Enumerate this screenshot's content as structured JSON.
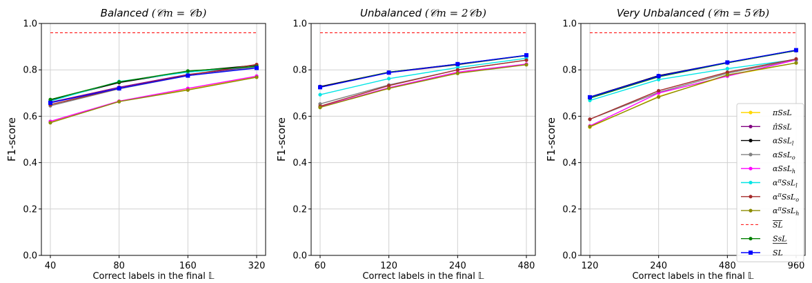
{
  "chart_data": [
    {
      "type": "line",
      "title": "Balanced  (c_m = c_b)",
      "title_parts": {
        "name": "Balanced",
        "formula": "(𝒞m = 𝒞b)"
      },
      "xlabel": "Correct labels in the final 𝕃",
      "ylabel": "F1-score",
      "x": [
        "40",
        "80",
        "160",
        "320"
      ],
      "ylim": [
        0.0,
        1.0
      ],
      "yticks": [
        "0.0",
        "0.2",
        "0.4",
        "0.6",
        "0.8",
        "1.0"
      ],
      "grid": true,
      "series": [
        {
          "name": "πSsL",
          "color": "#ffd700",
          "marker": "circle",
          "values": [
            0.575,
            0.665,
            0.715,
            0.77
          ]
        },
        {
          "name": "π̂SsL",
          "color": "#800080",
          "marker": "circle",
          "values": [
            0.66,
            0.725,
            0.78,
            0.815
          ]
        },
        {
          "name": "αSsL_l",
          "color": "#000000",
          "marker": "circle",
          "values": [
            0.67,
            0.745,
            0.793,
            0.82
          ]
        },
        {
          "name": "αSsL_o",
          "color": "#808080",
          "marker": "circle",
          "values": [
            0.645,
            0.718,
            0.775,
            0.812
          ]
        },
        {
          "name": "αSsL_h",
          "color": "#ff00ff",
          "marker": "circle",
          "values": [
            0.578,
            0.665,
            0.72,
            0.773
          ]
        },
        {
          "name": "α^πSsL_l",
          "color": "#00e5e5",
          "marker": "circle",
          "values": [
            0.665,
            0.75,
            0.79,
            0.815
          ]
        },
        {
          "name": "α^πSsL_o",
          "color": "#a52a2a",
          "marker": "circle",
          "values": [
            0.65,
            0.72,
            0.778,
            0.823
          ]
        },
        {
          "name": "α^πSsL_h",
          "color": "#8b8b00",
          "marker": "circle",
          "values": [
            0.572,
            0.663,
            0.713,
            0.768
          ]
        },
        {
          "name": "SL (upper)",
          "color": "#ff0000",
          "style": "dashed",
          "values": [
            0.96,
            0.96,
            0.96,
            0.96
          ]
        },
        {
          "name": "SsL (lower)",
          "color": "#008000",
          "marker": "circle",
          "values": [
            0.672,
            0.748,
            0.795,
            0.815
          ]
        },
        {
          "name": "SL",
          "color": "#0000ff",
          "marker": "square",
          "values": [
            0.658,
            0.72,
            0.775,
            0.808
          ]
        }
      ]
    },
    {
      "type": "line",
      "title": "Unbalanced  (c_m = 2c_b)",
      "title_parts": {
        "name": "Unbalanced",
        "formula": "(𝒞m = 2𝒞b)"
      },
      "xlabel": "Correct labels in the final 𝕃",
      "ylabel": "F1-score",
      "x": [
        "60",
        "120",
        "240",
        "480"
      ],
      "ylim": [
        0.0,
        1.0
      ],
      "yticks": [
        "0.0",
        "0.2",
        "0.4",
        "0.6",
        "0.8",
        "1.0"
      ],
      "grid": true,
      "series": [
        {
          "name": "πSsL",
          "color": "#ffd700",
          "marker": "circle",
          "values": [
            0.638,
            0.72,
            0.787,
            0.823
          ]
        },
        {
          "name": "π̂SsL",
          "color": "#800080",
          "marker": "circle",
          "values": [
            0.725,
            0.788,
            0.822,
            0.862
          ]
        },
        {
          "name": "αSsL_l",
          "color": "#000000",
          "marker": "circle",
          "values": [
            0.728,
            0.79,
            0.825,
            0.862
          ]
        },
        {
          "name": "αSsL_o",
          "color": "#808080",
          "marker": "circle",
          "values": [
            0.653,
            0.735,
            0.8,
            0.842
          ]
        },
        {
          "name": "αSsL_h",
          "color": "#ff00ff",
          "marker": "circle",
          "values": [
            0.64,
            0.723,
            0.79,
            0.825
          ]
        },
        {
          "name": "α^πSsL_l",
          "color": "#00e5e5",
          "marker": "circle",
          "values": [
            0.693,
            0.762,
            0.81,
            0.85
          ]
        },
        {
          "name": "α^πSsL_o",
          "color": "#a52a2a",
          "marker": "circle",
          "values": [
            0.643,
            0.732,
            0.8,
            0.842
          ]
        },
        {
          "name": "α^πSsL_h",
          "color": "#8b8b00",
          "marker": "circle",
          "values": [
            0.638,
            0.72,
            0.785,
            0.822
          ]
        },
        {
          "name": "SL (upper)",
          "color": "#ff0000",
          "style": "dashed",
          "values": [
            0.96,
            0.96,
            0.96,
            0.96
          ]
        },
        {
          "name": "SsL (lower)",
          "color": "#008000",
          "marker": "circle",
          "values": [
            0.725,
            0.79,
            0.823,
            0.862
          ]
        },
        {
          "name": "SL",
          "color": "#0000ff",
          "marker": "square",
          "values": [
            0.725,
            0.788,
            0.825,
            0.863
          ]
        }
      ]
    },
    {
      "type": "line",
      "title": "Very Unbalanced  (c_m = 5c_b)",
      "title_parts": {
        "name": "Very Unbalanced",
        "formula": "(𝒞m = 5𝒞b)"
      },
      "xlabel": "Correct labels in the final 𝕃",
      "ylabel": "F1-score",
      "x": [
        "120",
        "240",
        "480",
        "960"
      ],
      "ylim": [
        0.0,
        1.0
      ],
      "yticks": [
        "0.0",
        "0.2",
        "0.4",
        "0.6",
        "0.8",
        "1.0"
      ],
      "grid": true,
      "legend_position": "lower right",
      "series": [
        {
          "name": "πSsL",
          "color": "#ffd700",
          "marker": "circle",
          "values": [
            0.553,
            0.685,
            0.775,
            0.83
          ]
        },
        {
          "name": "π̂SsL",
          "color": "#800080",
          "marker": "circle",
          "values": [
            0.682,
            0.775,
            0.83,
            0.883
          ]
        },
        {
          "name": "αSsL_l",
          "color": "#000000",
          "marker": "circle",
          "values": [
            0.683,
            0.775,
            0.832,
            0.885
          ]
        },
        {
          "name": "αSsL_o",
          "color": "#808080",
          "marker": "circle",
          "values": [
            0.587,
            0.703,
            0.785,
            0.843
          ]
        },
        {
          "name": "αSsL_h",
          "color": "#ff00ff",
          "marker": "circle",
          "values": [
            0.558,
            0.7,
            0.773,
            0.843
          ]
        },
        {
          "name": "α^πSsL_l",
          "color": "#00e5e5",
          "marker": "circle",
          "values": [
            0.668,
            0.758,
            0.805,
            0.845
          ]
        },
        {
          "name": "α^πSsL_o",
          "color": "#a52a2a",
          "marker": "circle",
          "values": [
            0.587,
            0.71,
            0.79,
            0.847
          ]
        },
        {
          "name": "α^πSsL_h",
          "color": "#8b8b00",
          "marker": "circle",
          "values": [
            0.555,
            0.683,
            0.778,
            0.83
          ]
        },
        {
          "name": "SL (upper)",
          "color": "#ff0000",
          "style": "dashed",
          "values": [
            0.96,
            0.96,
            0.96,
            0.96
          ]
        },
        {
          "name": "SsL (lower)",
          "color": "#008000",
          "marker": "circle",
          "values": [
            0.678,
            0.77,
            0.83,
            0.883
          ]
        },
        {
          "name": "SL",
          "color": "#0000ff",
          "marker": "square",
          "values": [
            0.682,
            0.773,
            0.832,
            0.885
          ]
        }
      ]
    }
  ],
  "legend": [
    {
      "label": "πSsL",
      "color": "#ffd700",
      "marker": "circle",
      "dashed": false
    },
    {
      "label": "π̂SsL",
      "color": "#800080",
      "marker": "circle",
      "dashed": false
    },
    {
      "label": "αSsL_l",
      "color": "#000000",
      "marker": "circle",
      "dashed": false
    },
    {
      "label": "αSsL_o",
      "color": "#808080",
      "marker": "circle",
      "dashed": false
    },
    {
      "label": "αSsL_h",
      "color": "#ff00ff",
      "marker": "circle",
      "dashed": false
    },
    {
      "label": "α^πSsL_l",
      "color": "#00e5e5",
      "marker": "circle",
      "dashed": false
    },
    {
      "label": "α^πSsL_o",
      "color": "#a52a2a",
      "marker": "circle",
      "dashed": false
    },
    {
      "label": "α^πSsL_h",
      "color": "#8b8b00",
      "marker": "circle",
      "dashed": false
    },
    {
      "label": "SL (overline)",
      "color": "#ff0000",
      "marker": "none",
      "dashed": true
    },
    {
      "label": "SsL (underline)",
      "color": "#008000",
      "marker": "circle",
      "dashed": false
    },
    {
      "label": "SL",
      "color": "#0000ff",
      "marker": "square",
      "dashed": false
    }
  ]
}
